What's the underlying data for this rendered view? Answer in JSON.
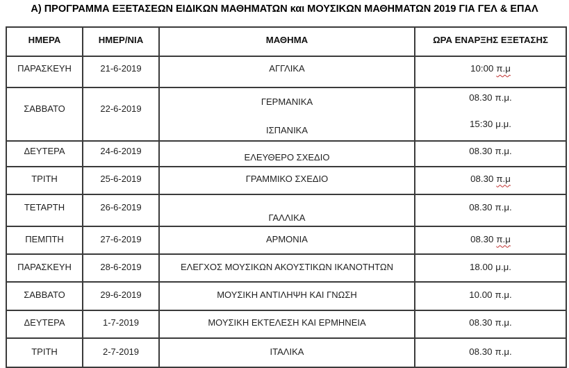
{
  "title": "Α) ΠΡΟΓΡΑΜΜΑ ΕΞΕΤΑΣΕΩΝ ΕΙΔΙΚΩΝ ΜΑΘΗΜΑΤΩΝ και ΜΟΥΣΙΚΩΝ ΜΑΘΗΜΑΤΩΝ 2019 ΓΙΑ ΓΕΛ & ΕΠΑΛ",
  "colors": {
    "border": "#3a3a3a",
    "text": "#1f1f1f",
    "spellcheck_underline": "#c03030",
    "background": "#ffffff"
  },
  "table": {
    "headers": [
      "ΗΜΕΡΑ",
      "ΗΜΕΡ/ΝΙΑ",
      "ΜΑΘΗΜΑ",
      "ΩΡΑ ΕΝΑΡΞΗΣ ΕΞΕΤΑΣΗΣ"
    ],
    "rows": [
      {
        "day": "ΠΑΡΑΣΚΕΥΗ",
        "date": "21-6-2019",
        "subjects": [
          "ΑΓΓΛΙΚΑ"
        ],
        "times": [
          {
            "value": "10:00",
            "suffix": "π.μ",
            "misspelled": true
          }
        ]
      },
      {
        "day": "ΣΑΒΒΑΤΟ",
        "date": "22-6-2019",
        "subjects": [
          "ΓΕΡΜΑΝΙΚΑ",
          "ΙΣΠΑΝΙΚΑ"
        ],
        "times": [
          {
            "value": "08.30",
            "suffix": "π.μ.",
            "misspelled": false
          },
          {
            "value": "15:30",
            "suffix": "μ.μ.",
            "misspelled": false
          }
        ]
      },
      {
        "day": "ΔΕΥΤΕΡΑ",
        "date": "24-6-2019",
        "subjects": [
          "ΕΛΕΥΘΕΡΟ ΣΧΕΔΙΟ"
        ],
        "times": [
          {
            "value": "08.30",
            "suffix": "π.μ.",
            "misspelled": false
          }
        ]
      },
      {
        "day": "ΤΡΙΤΗ",
        "date": "25-6-2019",
        "subjects": [
          "ΓΡΑΜΜΙΚΟ ΣΧΕΔΙΟ"
        ],
        "times": [
          {
            "value": "08.30",
            "suffix": "π.μ",
            "misspelled": true
          }
        ]
      },
      {
        "day": "ΤΕΤΑΡΤΗ",
        "date": "26-6-2019",
        "subjects": [
          "ΓΑΛΛΙΚΑ"
        ],
        "times": [
          {
            "value": "08.30",
            "suffix": "π.μ.",
            "misspelled": false
          }
        ]
      },
      {
        "day": "ΠΕΜΠΤΗ",
        "date": "27-6-2019",
        "subjects": [
          "ΑΡΜΟΝΙΑ"
        ],
        "times": [
          {
            "value": "08.30",
            "suffix": "π.μ",
            "misspelled": true
          }
        ]
      },
      {
        "day": "ΠΑΡΑΣΚΕΥΗ",
        "date": "28-6-2019",
        "subjects": [
          "ΕΛΕΓΧΟΣ ΜΟΥΣΙΚΩΝ ΑΚΟΥΣΤΙΚΩΝ ΙΚΑΝΟΤΗΤΩΝ"
        ],
        "times": [
          {
            "value": "18.00",
            "suffix": "μ.μ.",
            "misspelled": false
          }
        ]
      },
      {
        "day": "ΣΑΒΒΑΤΟ",
        "date": "29-6-2019",
        "subjects": [
          "ΜΟΥΣΙΚΗ ΑΝΤΙΛΗΨΗ ΚΑΙ ΓΝΩΣΗ"
        ],
        "times": [
          {
            "value": "10.00",
            "suffix": "π.μ.",
            "misspelled": false
          }
        ]
      },
      {
        "day": "ΔΕΥΤΕΡΑ",
        "date": "1-7-2019",
        "subjects": [
          "ΜΟΥΣΙΚΗ ΕΚΤΕΛΕΣΗ ΚΑΙ ΕΡΜΗΝΕΙΑ"
        ],
        "times": [
          {
            "value": "08.30",
            "suffix": "π.μ.",
            "misspelled": false
          }
        ]
      },
      {
        "day": "ΤΡΙΤΗ",
        "date": "2-7-2019",
        "subjects": [
          "ΙΤΑΛΙΚΑ"
        ],
        "times": [
          {
            "value": "08.30",
            "suffix": "π.μ.",
            "misspelled": false
          }
        ]
      }
    ]
  }
}
